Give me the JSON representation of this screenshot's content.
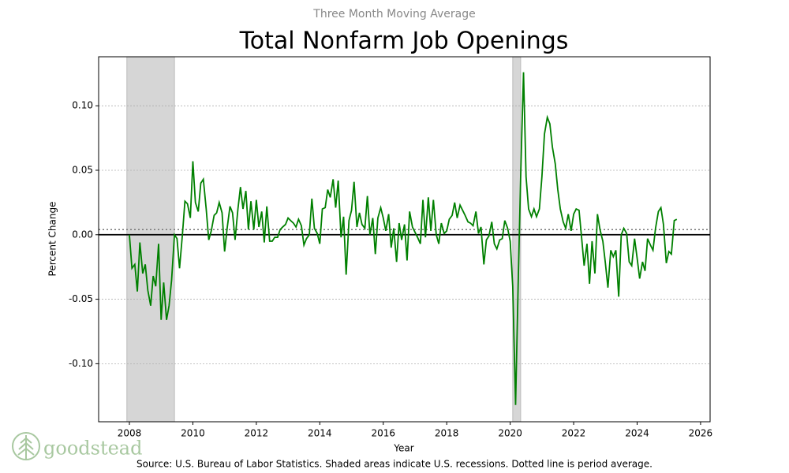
{
  "chart_data": {
    "type": "line",
    "subtitle": "Three Month Moving Average",
    "title": "Total Nonfarm Job Openings",
    "xlabel": "Year",
    "ylabel": "Percent Change",
    "source": "Source: U.S. Bureau of Labor Statistics. Shaded areas indicate U.S. recessions. Dotted line is period average.",
    "logo": "goodstead",
    "xlim": [
      2007.03,
      2026.3
    ],
    "ylim": [
      -0.145,
      0.138
    ],
    "xticks": [
      2008,
      2010,
      2012,
      2014,
      2016,
      2018,
      2020,
      2022,
      2024,
      2026
    ],
    "yticks": [
      {
        "value": -0.1,
        "label": "-0.10"
      },
      {
        "value": -0.05,
        "label": "-0.05"
      },
      {
        "value": 0,
        "label": "0.00"
      },
      {
        "value": 0.05,
        "label": "0.05"
      },
      {
        "value": 0.1,
        "label": "0.10"
      }
    ],
    "grid": true,
    "average": 0.004,
    "recessions": [
      [
        2007.92,
        2009.42
      ],
      [
        2020.08,
        2020.33
      ]
    ],
    "x": [
      2008,
      2008.08,
      2008.17,
      2008.25,
      2008.33,
      2008.42,
      2008.5,
      2008.58,
      2008.67,
      2008.75,
      2008.83,
      2008.92,
      2009,
      2009.08,
      2009.17,
      2009.25,
      2009.33,
      2009.42,
      2009.5,
      2009.58,
      2009.67,
      2009.75,
      2009.83,
      2009.92,
      2010,
      2010.08,
      2010.17,
      2010.25,
      2010.33,
      2010.42,
      2010.5,
      2010.58,
      2010.67,
      2010.75,
      2010.83,
      2010.92,
      2011,
      2011.08,
      2011.17,
      2011.25,
      2011.33,
      2011.42,
      2011.5,
      2011.58,
      2011.67,
      2011.75,
      2011.83,
      2011.92,
      2012,
      2012.08,
      2012.17,
      2012.25,
      2012.33,
      2012.42,
      2012.5,
      2012.58,
      2012.67,
      2012.75,
      2012.83,
      2012.92,
      2013,
      2013.08,
      2013.17,
      2013.25,
      2013.33,
      2013.42,
      2013.5,
      2013.58,
      2013.67,
      2013.75,
      2013.83,
      2013.92,
      2014,
      2014.08,
      2014.17,
      2014.25,
      2014.33,
      2014.42,
      2014.5,
      2014.58,
      2014.67,
      2014.75,
      2014.83,
      2014.92,
      2015,
      2015.08,
      2015.17,
      2015.25,
      2015.33,
      2015.42,
      2015.5,
      2015.58,
      2015.67,
      2015.75,
      2015.83,
      2015.92,
      2016,
      2016.08,
      2016.17,
      2016.25,
      2016.33,
      2016.42,
      2016.5,
      2016.58,
      2016.67,
      2016.75,
      2016.83,
      2016.92,
      2017,
      2017.08,
      2017.17,
      2017.25,
      2017.33,
      2017.42,
      2017.5,
      2017.58,
      2017.67,
      2017.75,
      2017.83,
      2017.92,
      2018,
      2018.08,
      2018.17,
      2018.25,
      2018.33,
      2018.42,
      2018.5,
      2018.58,
      2018.67,
      2018.75,
      2018.83,
      2018.92,
      2019,
      2019.08,
      2019.17,
      2019.25,
      2019.33,
      2019.42,
      2019.5,
      2019.58,
      2019.67,
      2019.75,
      2019.83,
      2019.92,
      2020,
      2020.08,
      2020.17,
      2020.25,
      2020.33,
      2020.42,
      2020.5,
      2020.58,
      2020.67,
      2020.75,
      2020.83,
      2020.92,
      2021,
      2021.08,
      2021.17,
      2021.25,
      2021.33,
      2021.42,
      2021.5,
      2021.58,
      2021.67,
      2021.75,
      2021.83,
      2021.92,
      2022,
      2022.08,
      2022.17,
      2022.25,
      2022.33,
      2022.42,
      2022.5,
      2022.58,
      2022.67,
      2022.75,
      2022.83,
      2022.92,
      2023,
      2023.08,
      2023.17,
      2023.25,
      2023.33,
      2023.42,
      2023.5,
      2023.58,
      2023.67,
      2023.75,
      2023.83,
      2023.92,
      2024,
      2024.08,
      2024.17,
      2024.25,
      2024.33,
      2024.42,
      2024.5,
      2024.58,
      2024.67,
      2024.75,
      2024.83,
      2024.92,
      2025,
      2025.08,
      2025.17,
      2025.25
    ],
    "series": [
      {
        "name": "Percent Change",
        "color": "#008000",
        "values": [
          0.0,
          -0.026,
          -0.023,
          -0.044,
          -0.006,
          -0.03,
          -0.023,
          -0.043,
          -0.055,
          -0.032,
          -0.04,
          -0.007,
          -0.066,
          -0.037,
          -0.066,
          -0.055,
          -0.035,
          0.0,
          -0.003,
          -0.026,
          0.0,
          0.026,
          0.024,
          0.013,
          0.057,
          0.025,
          0.018,
          0.04,
          0.043,
          0.02,
          -0.004,
          0.003,
          0.015,
          0.017,
          0.025,
          0.017,
          -0.013,
          0.005,
          0.022,
          0.017,
          -0.004,
          0.02,
          0.037,
          0.02,
          0.034,
          0.004,
          0.026,
          0.004,
          0.027,
          0.006,
          0.018,
          -0.006,
          0.022,
          -0.005,
          -0.005,
          -0.002,
          -0.002,
          0.004,
          0.006,
          0.008,
          0.013,
          0.011,
          0.009,
          0.006,
          0.012,
          0.007,
          -0.008,
          -0.003,
          0.0,
          0.028,
          0.005,
          0.001,
          -0.007,
          0.02,
          0.021,
          0.035,
          0.029,
          0.043,
          0.021,
          0.042,
          -0.002,
          0.014,
          -0.031,
          0.011,
          0.019,
          0.041,
          0.006,
          0.017,
          0.008,
          0.005,
          0.03,
          0.0,
          0.013,
          -0.015,
          0.013,
          0.021,
          0.013,
          0.003,
          0.016,
          -0.01,
          0.005,
          -0.021,
          0.009,
          -0.004,
          0.008,
          -0.02,
          0.018,
          0.006,
          0.002,
          -0.002,
          -0.007,
          0.027,
          -0.002,
          0.029,
          0.003,
          0.027,
          0.0,
          -0.007,
          0.009,
          0.001,
          0.003,
          0.012,
          0.015,
          0.025,
          0.013,
          0.023,
          0.019,
          0.015,
          0.01,
          0.009,
          0.007,
          0.018,
          0.001,
          0.006,
          -0.023,
          -0.004,
          -0.001,
          0.01,
          -0.007,
          -0.011,
          -0.004,
          -0.003,
          0.011,
          0.005,
          -0.005,
          -0.04,
          -0.132,
          -0.04,
          0.045,
          0.126,
          0.045,
          0.02,
          0.014,
          0.02,
          0.014,
          0.02,
          0.045,
          0.078,
          0.091,
          0.086,
          0.068,
          0.055,
          0.035,
          0.02,
          0.01,
          0.005,
          0.016,
          0.003,
          0.016,
          0.02,
          0.019,
          -0.002,
          -0.024,
          -0.007,
          -0.038,
          -0.005,
          -0.03,
          0.016,
          0.004,
          -0.005,
          -0.022,
          -0.041,
          -0.012,
          -0.017,
          -0.012,
          -0.048,
          0.0,
          0.005,
          0.001,
          -0.021,
          -0.024,
          -0.003,
          -0.018,
          -0.034,
          -0.021,
          -0.028,
          -0.003,
          -0.008,
          -0.012,
          0.005,
          0.018,
          0.021,
          0.008,
          -0.022,
          -0.013,
          -0.015,
          0.011,
          0.012
        ]
      }
    ]
  }
}
